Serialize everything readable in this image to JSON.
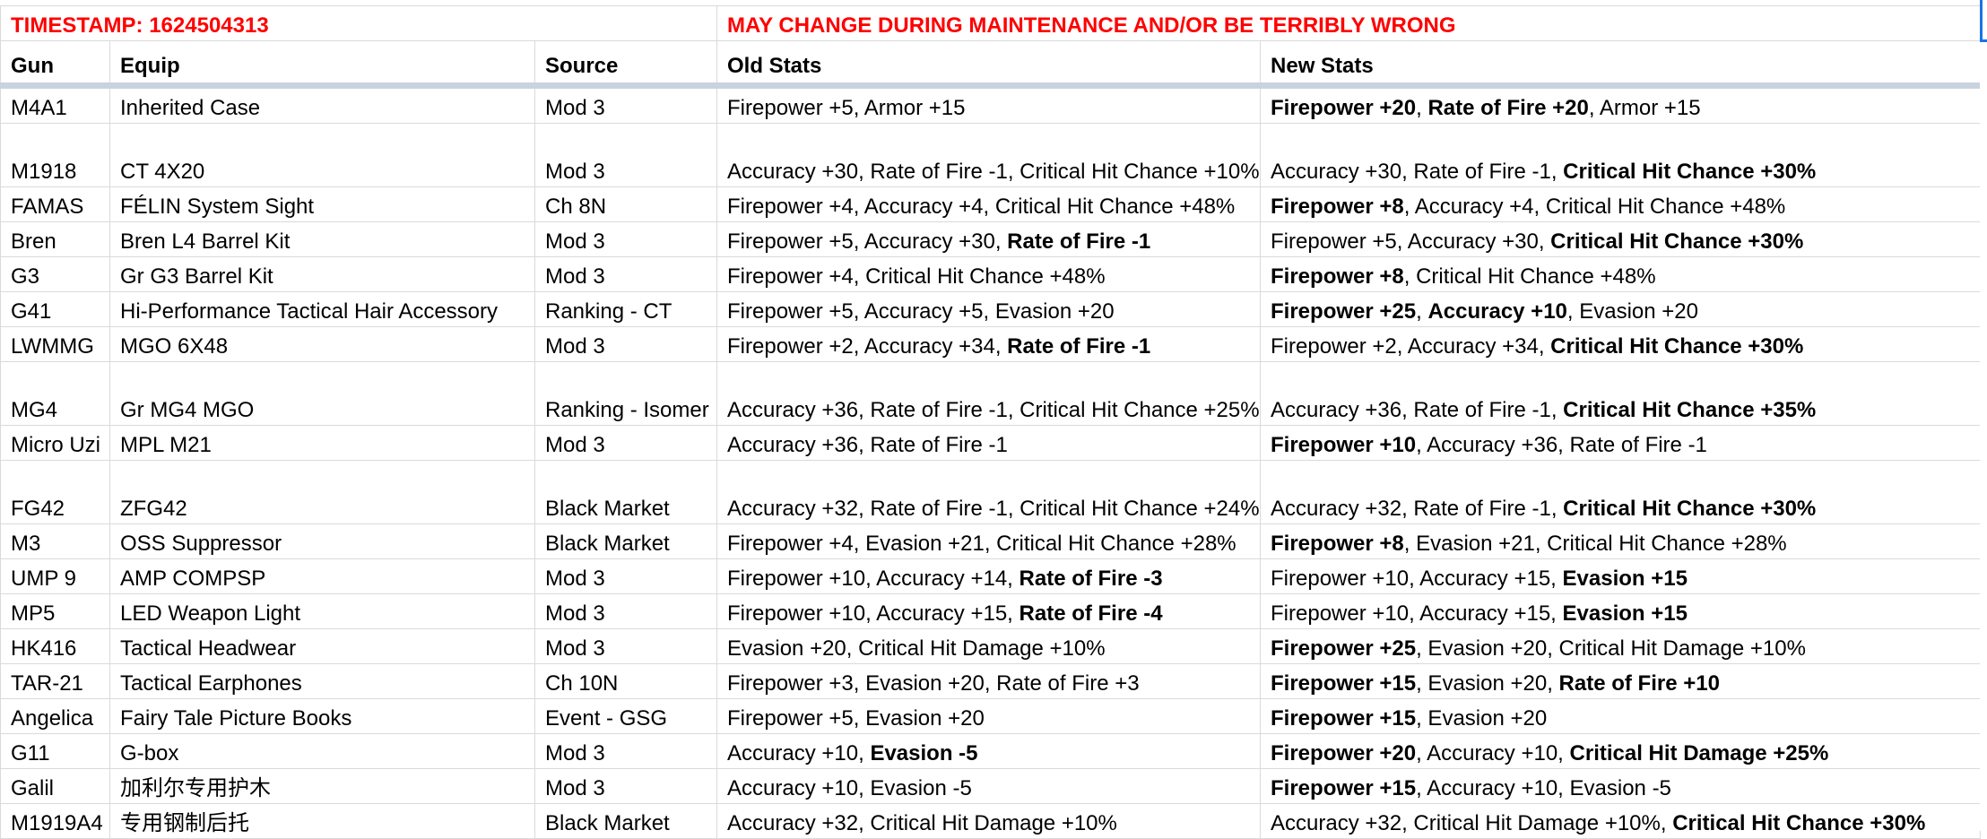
{
  "banner": {
    "timestamp": "TIMESTAMP: 1624504313",
    "warning": "MAY CHANGE DURING MAINTENANCE AND/OR BE TERRIBLY WRONG"
  },
  "headers": {
    "gun": "Gun",
    "equip": "Equip",
    "source": "Source",
    "old_stats": "Old Stats",
    "new_stats": "New Stats"
  },
  "rows": [
    {
      "gun": "M4A1",
      "equip": "Inherited Case",
      "source": "Mod 3",
      "old": [
        {
          "t": "Firepower +5, Armor +15",
          "b": false
        }
      ],
      "new": [
        {
          "t": "Firepower +20",
          "b": true
        },
        {
          "t": ", ",
          "b": false
        },
        {
          "t": "Rate of Fire +20",
          "b": true
        },
        {
          "t": ", Armor +15",
          "b": false
        }
      ]
    },
    {
      "gun": "M1918",
      "equip": "CT 4X20",
      "source": "Mod 3",
      "tall": true,
      "old": [
        {
          "t": "Accuracy +30, Rate of Fire -1, Critical Hit Chance +10%",
          "b": false
        }
      ],
      "new": [
        {
          "t": "Accuracy +30, Rate of Fire -1, ",
          "b": false
        },
        {
          "t": "Critical Hit Chance +30%",
          "b": true
        }
      ]
    },
    {
      "gun": "FAMAS",
      "equip": "FÉLIN System Sight",
      "source": "Ch 8N",
      "old": [
        {
          "t": "Firepower +4, Accuracy +4, Critical Hit Chance +48%",
          "b": false
        }
      ],
      "new": [
        {
          "t": "Firepower +8",
          "b": true
        },
        {
          "t": ", Accuracy +4, Critical Hit Chance +48%",
          "b": false
        }
      ]
    },
    {
      "gun": "Bren",
      "equip": "Bren L4 Barrel Kit",
      "source": "Mod 3",
      "old": [
        {
          "t": "Firepower +5, Accuracy +30, ",
          "b": false
        },
        {
          "t": "Rate of Fire -1",
          "b": true
        }
      ],
      "new": [
        {
          "t": "Firepower +5, Accuracy +30, ",
          "b": false
        },
        {
          "t": "Critical Hit Chance +30%",
          "b": true
        }
      ]
    },
    {
      "gun": "G3",
      "equip": "Gr G3 Barrel Kit",
      "source": "Mod 3",
      "old": [
        {
          "t": "Firepower +4, Critical Hit Chance +48%",
          "b": false
        }
      ],
      "new": [
        {
          "t": "Firepower +8",
          "b": true
        },
        {
          "t": ", Critical Hit Chance +48%",
          "b": false
        }
      ]
    },
    {
      "gun": "G41",
      "equip": "Hi-Performance Tactical Hair Accessory",
      "source": "Ranking - CT",
      "old": [
        {
          "t": "Firepower +5, Accuracy +5, Evasion +20",
          "b": false
        }
      ],
      "new": [
        {
          "t": "Firepower +25",
          "b": true
        },
        {
          "t": ", ",
          "b": false
        },
        {
          "t": "Accuracy +10",
          "b": true
        },
        {
          "t": ", Evasion +20",
          "b": false
        }
      ]
    },
    {
      "gun": "LWMMG",
      "equip": "MGO 6X48",
      "source": "Mod 3",
      "old": [
        {
          "t": "Firepower +2, Accuracy +34, ",
          "b": false
        },
        {
          "t": "Rate of Fire -1",
          "b": true
        }
      ],
      "new": [
        {
          "t": "Firepower +2, Accuracy +34, ",
          "b": false
        },
        {
          "t": "Critical Hit Chance +30%",
          "b": true
        }
      ]
    },
    {
      "gun": "MG4",
      "equip": "Gr MG4 MGO",
      "source": "Ranking - Isomer",
      "tall": true,
      "old": [
        {
          "t": "Accuracy +36, Rate of Fire -1, Critical Hit Chance +25%",
          "b": false
        }
      ],
      "new": [
        {
          "t": "Accuracy +36, Rate of Fire -1, ",
          "b": false
        },
        {
          "t": "Critical Hit Chance +35%",
          "b": true
        }
      ]
    },
    {
      "gun": "Micro Uzi",
      "equip": "MPL M21",
      "source": "Mod 3",
      "old": [
        {
          "t": "Accuracy +36, Rate of Fire -1",
          "b": false
        }
      ],
      "new": [
        {
          "t": "Firepower +10",
          "b": true
        },
        {
          "t": ", Accuracy +36, Rate of Fire -1",
          "b": false
        }
      ]
    },
    {
      "gun": "FG42",
      "equip": "ZFG42",
      "source": "Black Market",
      "tall": true,
      "old": [
        {
          "t": "Accuracy +32, Rate of Fire -1, Critical Hit Chance +24%",
          "b": false
        }
      ],
      "new": [
        {
          "t": "Accuracy +32, Rate of Fire -1, ",
          "b": false
        },
        {
          "t": "Critical Hit Chance +30%",
          "b": true
        }
      ]
    },
    {
      "gun": "M3",
      "equip": "OSS Suppressor",
      "source": "Black Market",
      "old": [
        {
          "t": "Firepower +4, Evasion +21, Critical Hit Chance +28%",
          "b": false
        }
      ],
      "new": [
        {
          "t": "Firepower +8",
          "b": true
        },
        {
          "t": ", Evasion +21, Critical Hit Chance +28%",
          "b": false
        }
      ]
    },
    {
      "gun": "UMP 9",
      "equip": "AMP COMPSP",
      "source": "Mod 3",
      "old": [
        {
          "t": "Firepower +10, Accuracy +14, ",
          "b": false
        },
        {
          "t": "Rate of Fire -3",
          "b": true
        }
      ],
      "new": [
        {
          "t": "Firepower +10, Accuracy +15, ",
          "b": false
        },
        {
          "t": "Evasion +15",
          "b": true
        }
      ]
    },
    {
      "gun": "MP5",
      "equip": "LED Weapon Light",
      "source": "Mod 3",
      "old": [
        {
          "t": "Firepower +10, Accuracy +15, ",
          "b": false
        },
        {
          "t": "Rate of Fire -4",
          "b": true
        }
      ],
      "new": [
        {
          "t": "Firepower +10, Accuracy +15, ",
          "b": false
        },
        {
          "t": "Evasion +15",
          "b": true
        }
      ]
    },
    {
      "gun": "HK416",
      "equip": "Tactical Headwear",
      "source": "Mod 3",
      "old": [
        {
          "t": "Evasion +20, Critical Hit Damage +10%",
          "b": false
        }
      ],
      "new": [
        {
          "t": "Firepower +25",
          "b": true
        },
        {
          "t": ", Evasion +20, Critical Hit Damage +10%",
          "b": false
        }
      ]
    },
    {
      "gun": "TAR-21",
      "equip": "Tactical Earphones",
      "source": "Ch 10N",
      "old": [
        {
          "t": "Firepower +3, Evasion +20, Rate of Fire +3",
          "b": false
        }
      ],
      "new": [
        {
          "t": "Firepower +15",
          "b": true
        },
        {
          "t": ", Evasion +20, ",
          "b": false
        },
        {
          "t": "Rate of Fire +10",
          "b": true
        }
      ]
    },
    {
      "gun": "Angelica",
      "equip": "Fairy Tale Picture Books",
      "source": "Event - GSG",
      "old": [
        {
          "t": "Firepower +5, Evasion +20",
          "b": false
        }
      ],
      "new": [
        {
          "t": "Firepower +15",
          "b": true
        },
        {
          "t": ", Evasion +20",
          "b": false
        }
      ]
    },
    {
      "gun": "G11",
      "equip": "G-box",
      "source": "Mod 3",
      "old": [
        {
          "t": "Accuracy +10, ",
          "b": false
        },
        {
          "t": "Evasion -5",
          "b": true
        }
      ],
      "new": [
        {
          "t": "Firepower +20",
          "b": true
        },
        {
          "t": ", Accuracy +10, ",
          "b": false
        },
        {
          "t": "Critical Hit Damage +25%",
          "b": true
        }
      ]
    },
    {
      "gun": "Galil",
      "equip": "加利尔专用护木",
      "source": "Mod 3",
      "old": [
        {
          "t": "Accuracy +10, Evasion -5",
          "b": false
        }
      ],
      "new": [
        {
          "t": "Firepower +15",
          "b": true
        },
        {
          "t": ", Accuracy +10, Evasion -5",
          "b": false
        }
      ]
    },
    {
      "gun": "M1919A4",
      "equip": "专用钢制后托",
      "source": "Black Market",
      "old": [
        {
          "t": "Accuracy +32, Critical Hit Damage +10%",
          "b": false
        }
      ],
      "new": [
        {
          "t": "Accuracy +32, Critical Hit Damage +10%, ",
          "b": false
        },
        {
          "t": "Critical Hit Chance +30%",
          "b": true
        }
      ]
    }
  ]
}
